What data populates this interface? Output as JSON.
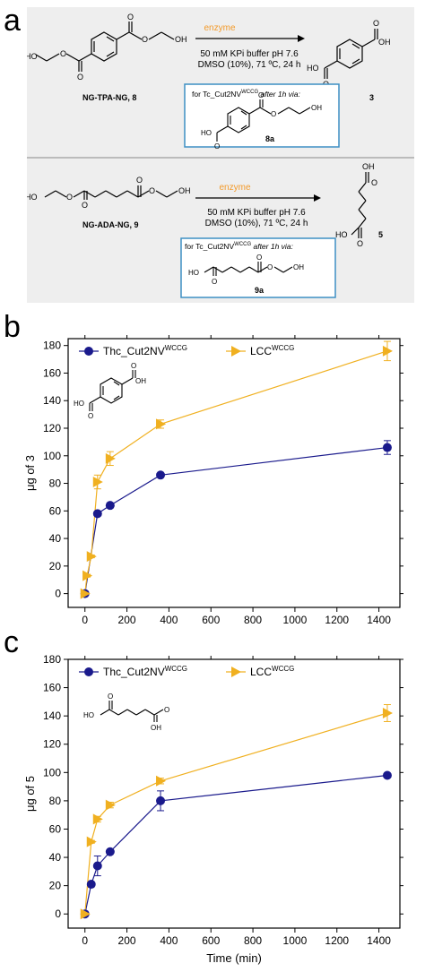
{
  "panel_labels": {
    "a": "a",
    "b": "b",
    "c": "c"
  },
  "scheme": {
    "reaction1": {
      "substrate_name": "NG-TPA-NG, 8",
      "arrow_top": "enzyme",
      "cond_line1": "50 mM KPi buffer pH 7.6",
      "cond_line2": "DMSO (10%), 71 ºC, 24 h",
      "product_number": "3",
      "inset_label_prefix": "for Tc_Cut2NV",
      "inset_label_sup": "WCCG",
      "inset_label_suffix": " after 1h via:",
      "inset_product_number": "8a"
    },
    "reaction2": {
      "substrate_name": "NG-ADA-NG, 9",
      "arrow_top": "enzyme",
      "cond_line1": "50 mM KPi buffer pH 7.6",
      "cond_line2": "DMSO (10%), 71 ºC, 24 h",
      "product_number": "5",
      "inset_label_prefix": "for Tc_Cut2NV",
      "inset_label_sup": "WCCG",
      "inset_label_suffix": " after 1h via:",
      "inset_product_number": "9a"
    },
    "atom_labels": {
      "HO": "HO",
      "OH": "OH",
      "O": "O"
    }
  },
  "colors": {
    "scheme_bg": "#eeeeee",
    "inset_border": "#3d8fc4",
    "enzyme_text": "#f39a2a",
    "series_thc": "#1a1a8c",
    "series_lcc": "#f0b020"
  },
  "chart_data": [
    {
      "type": "line",
      "xlabel": "Time (min)",
      "ylabel": "μg of 3",
      "xlim": [
        -80,
        1500
      ],
      "ylim": [
        -10,
        185
      ],
      "xticks": [
        0,
        200,
        400,
        600,
        800,
        1000,
        1200,
        1400
      ],
      "yticks": [
        0,
        20,
        40,
        60,
        80,
        100,
        120,
        140,
        160,
        180
      ],
      "legend_placement": "top-left",
      "grid": false,
      "series": [
        {
          "name": "Thc_Cut2NV",
          "name_sup": "WCCG",
          "marker": "circle",
          "x": [
            0,
            60,
            120,
            360,
            1440
          ],
          "y": [
            0,
            58,
            64,
            86,
            106
          ],
          "err": [
            0,
            1.5,
            1.5,
            1,
            5
          ]
        },
        {
          "name": "LCC",
          "name_sup": "WCCG",
          "marker": "triangle-right",
          "x": [
            0,
            10,
            30,
            60,
            120,
            360,
            1440
          ],
          "y": [
            0,
            13,
            27,
            81,
            98,
            123,
            176
          ],
          "err": [
            0,
            1,
            1,
            5,
            5,
            3,
            7
          ]
        }
      ]
    },
    {
      "type": "line",
      "xlabel": "Time (min)",
      "ylabel": "μg of 5",
      "xlim": [
        -80,
        1500
      ],
      "ylim": [
        -10,
        180
      ],
      "xticks": [
        0,
        200,
        400,
        600,
        800,
        1000,
        1200,
        1400
      ],
      "yticks": [
        0,
        20,
        40,
        60,
        80,
        100,
        120,
        140,
        160,
        180
      ],
      "legend_placement": "top-left",
      "grid": false,
      "series": [
        {
          "name": "Thc_Cut2NV",
          "name_sup": "WCCG",
          "marker": "circle",
          "x": [
            0,
            30,
            60,
            120,
            360,
            1440
          ],
          "y": [
            0,
            21,
            34,
            44,
            80,
            98
          ],
          "err": [
            0,
            1,
            7,
            1,
            7,
            1
          ]
        },
        {
          "name": "LCC",
          "name_sup": "WCCG",
          "marker": "triangle-right",
          "x": [
            0,
            30,
            60,
            120,
            360,
            1440
          ],
          "y": [
            0,
            51,
            67,
            77,
            94,
            142
          ],
          "err": [
            0,
            1,
            2,
            2,
            2,
            6
          ]
        }
      ]
    }
  ]
}
